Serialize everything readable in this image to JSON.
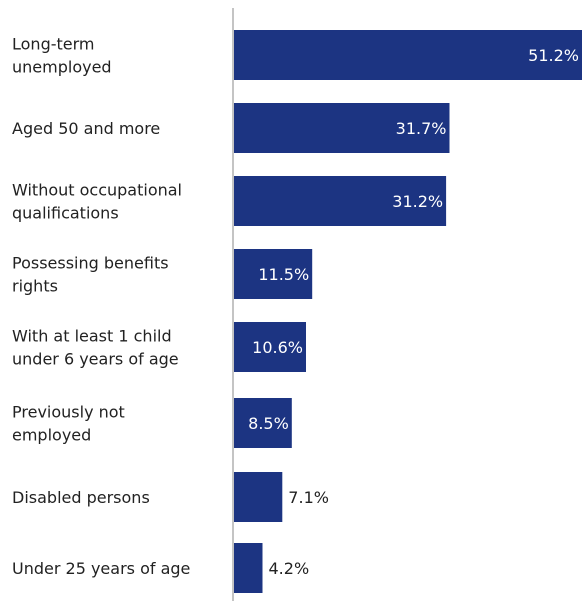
{
  "chart_data": {
    "type": "bar",
    "orientation": "horizontal",
    "categories": [
      [
        "Long-term",
        "unemployed"
      ],
      [
        "Aged 50 and more"
      ],
      [
        "Without occupational",
        "qualifications"
      ],
      [
        "Possessing benefits",
        "rights"
      ],
      [
        "With at least 1 child",
        "under 6 years of age"
      ],
      [
        "Previously not",
        "employed"
      ],
      [
        "Disabled persons"
      ],
      [
        "Under 25 years of age"
      ]
    ],
    "values": [
      51.2,
      31.7,
      31.2,
      11.5,
      10.6,
      8.5,
      7.1,
      4.2
    ],
    "value_labels": [
      "51.2%",
      "31.7%",
      "31.2%",
      "11.5%",
      "10.6%",
      "8.5%",
      "7.1%",
      "4.2%"
    ],
    "title": "",
    "xlabel": "",
    "ylabel": "",
    "xlim": [
      0,
      51.2
    ],
    "grid": false,
    "legend": "none",
    "bar_color": "#1c3482",
    "label_inside_color": "#ffffff",
    "label_outside_color": "#222222"
  }
}
